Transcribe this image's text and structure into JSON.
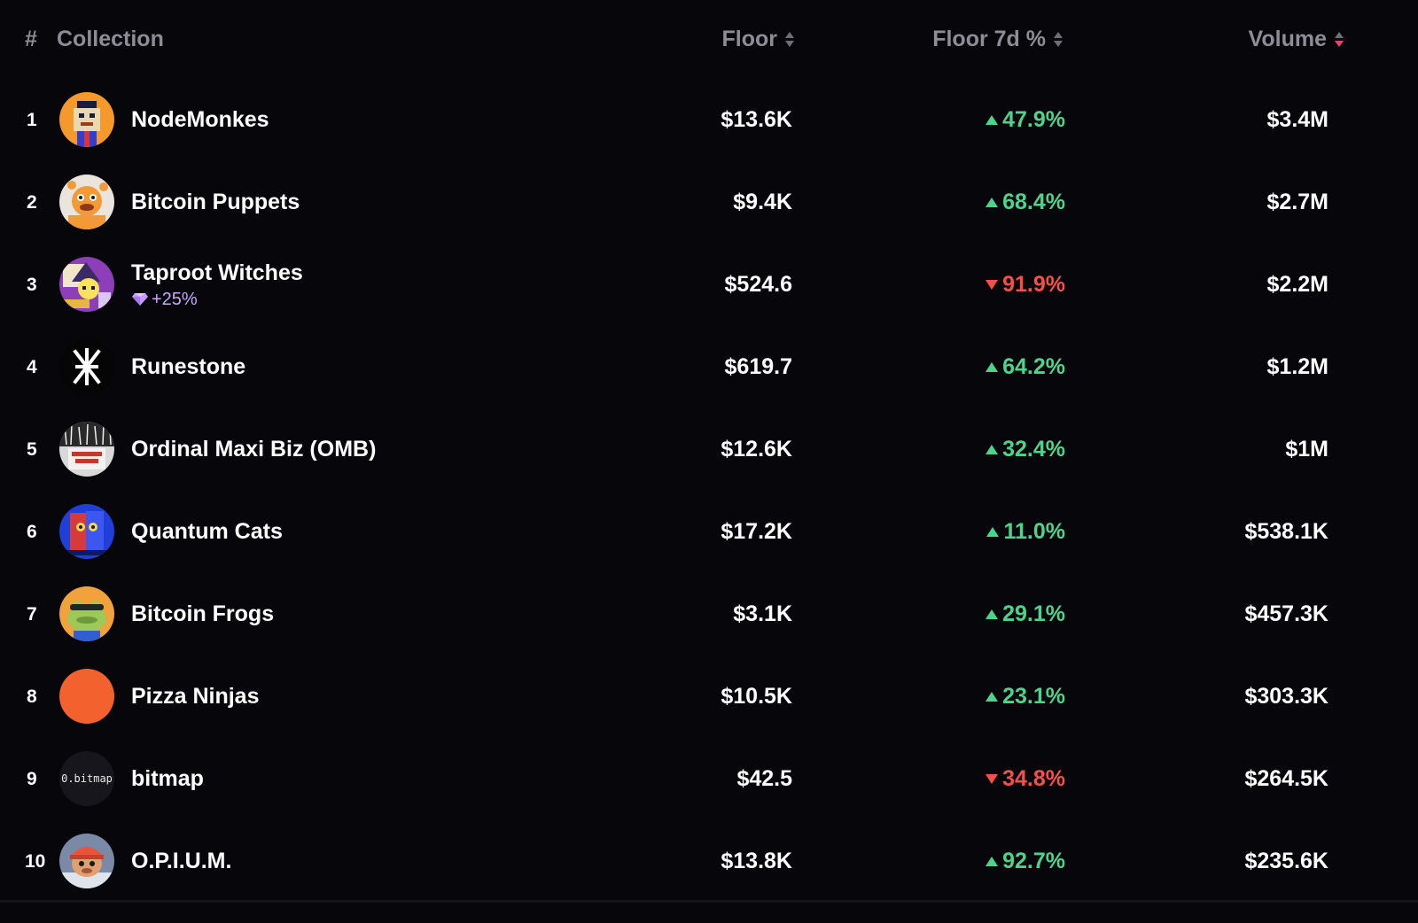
{
  "header": {
    "rank_label": "#",
    "collection_label": "Collection",
    "floor_label": "Floor",
    "floor7d_label": "Floor 7d %",
    "volume_label": "Volume",
    "active_sort": "volume-desc"
  },
  "colors": {
    "background": "#07060b",
    "positive": "#4dd48c",
    "negative": "#f3504a",
    "sort_active": "#e8436d",
    "badge": "#c9a6ff"
  },
  "rows": [
    {
      "rank": "1",
      "name": "NodeMonkes",
      "floor": "$13.6K",
      "change": "47.9%",
      "direction": "up",
      "volume": "$3.4M",
      "avatar": "nodemonkes-avatar"
    },
    {
      "rank": "2",
      "name": "Bitcoin Puppets",
      "floor": "$9.4K",
      "change": "68.4%",
      "direction": "up",
      "volume": "$2.7M",
      "avatar": "bitcoin-puppets-avatar"
    },
    {
      "rank": "3",
      "name": "Taproot Witches",
      "badge": "+25%",
      "floor": "$524.6",
      "change": "91.9%",
      "direction": "down",
      "volume": "$2.2M",
      "avatar": "taproot-witches-avatar"
    },
    {
      "rank": "4",
      "name": "Runestone",
      "floor": "$619.7",
      "change": "64.2%",
      "direction": "up",
      "volume": "$1.2M",
      "avatar": "runestone-avatar"
    },
    {
      "rank": "5",
      "name": "Ordinal Maxi Biz (OMB)",
      "floor": "$12.6K",
      "change": "32.4%",
      "direction": "up",
      "volume": "$1M",
      "avatar": "omb-avatar"
    },
    {
      "rank": "6",
      "name": "Quantum Cats",
      "floor": "$17.2K",
      "change": "11.0%",
      "direction": "up",
      "volume": "$538.1K",
      "avatar": "quantum-cats-avatar"
    },
    {
      "rank": "7",
      "name": "Bitcoin Frogs",
      "floor": "$3.1K",
      "change": "29.1%",
      "direction": "up",
      "volume": "$457.3K",
      "avatar": "bitcoin-frogs-avatar"
    },
    {
      "rank": "8",
      "name": "Pizza Ninjas",
      "floor": "$10.5K",
      "change": "23.1%",
      "direction": "up",
      "volume": "$303.3K",
      "avatar": "pizza-ninjas-avatar"
    },
    {
      "rank": "9",
      "name": "bitmap",
      "avatar_text": "0.bitmap",
      "floor": "$42.5",
      "change": "34.8%",
      "direction": "down",
      "volume": "$264.5K",
      "avatar": "bitmap-avatar"
    },
    {
      "rank": "10",
      "name": "O.P.I.U.M.",
      "floor": "$13.8K",
      "change": "92.7%",
      "direction": "up",
      "volume": "$235.6K",
      "avatar": "opium-avatar"
    }
  ]
}
